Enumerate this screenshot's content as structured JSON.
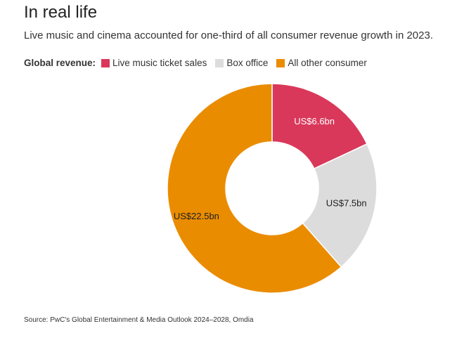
{
  "header": {
    "title": "In real life",
    "subtitle": "Live music and cinema accounted for one-third of all consumer revenue growth in 2023."
  },
  "legend": {
    "title": "Global revenue:"
  },
  "source": "Source: PwC's Global Entertainment & Media Outlook 2024–2028, Omdia",
  "chart_data": {
    "type": "pie",
    "donut": true,
    "title": "In real life",
    "subtitle": "Live music and cinema accounted for one-third of all consumer revenue growth in 2023.",
    "legend_placement": "top-left",
    "unit": "US$bn",
    "slices": [
      {
        "name": "Live music ticket sales",
        "value": 6.6,
        "label": "US$6.6bn",
        "color": "#d9385a",
        "label_color": "#ffffff"
      },
      {
        "name": "Box office",
        "value": 7.5,
        "label": "US$7.5bn",
        "color": "#dcdcdc",
        "label_color": "#222222"
      },
      {
        "name": "All other consumer",
        "value": 22.5,
        "label": "US$22.5bn",
        "color": "#ea8c00",
        "label_color": "#222222"
      }
    ]
  }
}
